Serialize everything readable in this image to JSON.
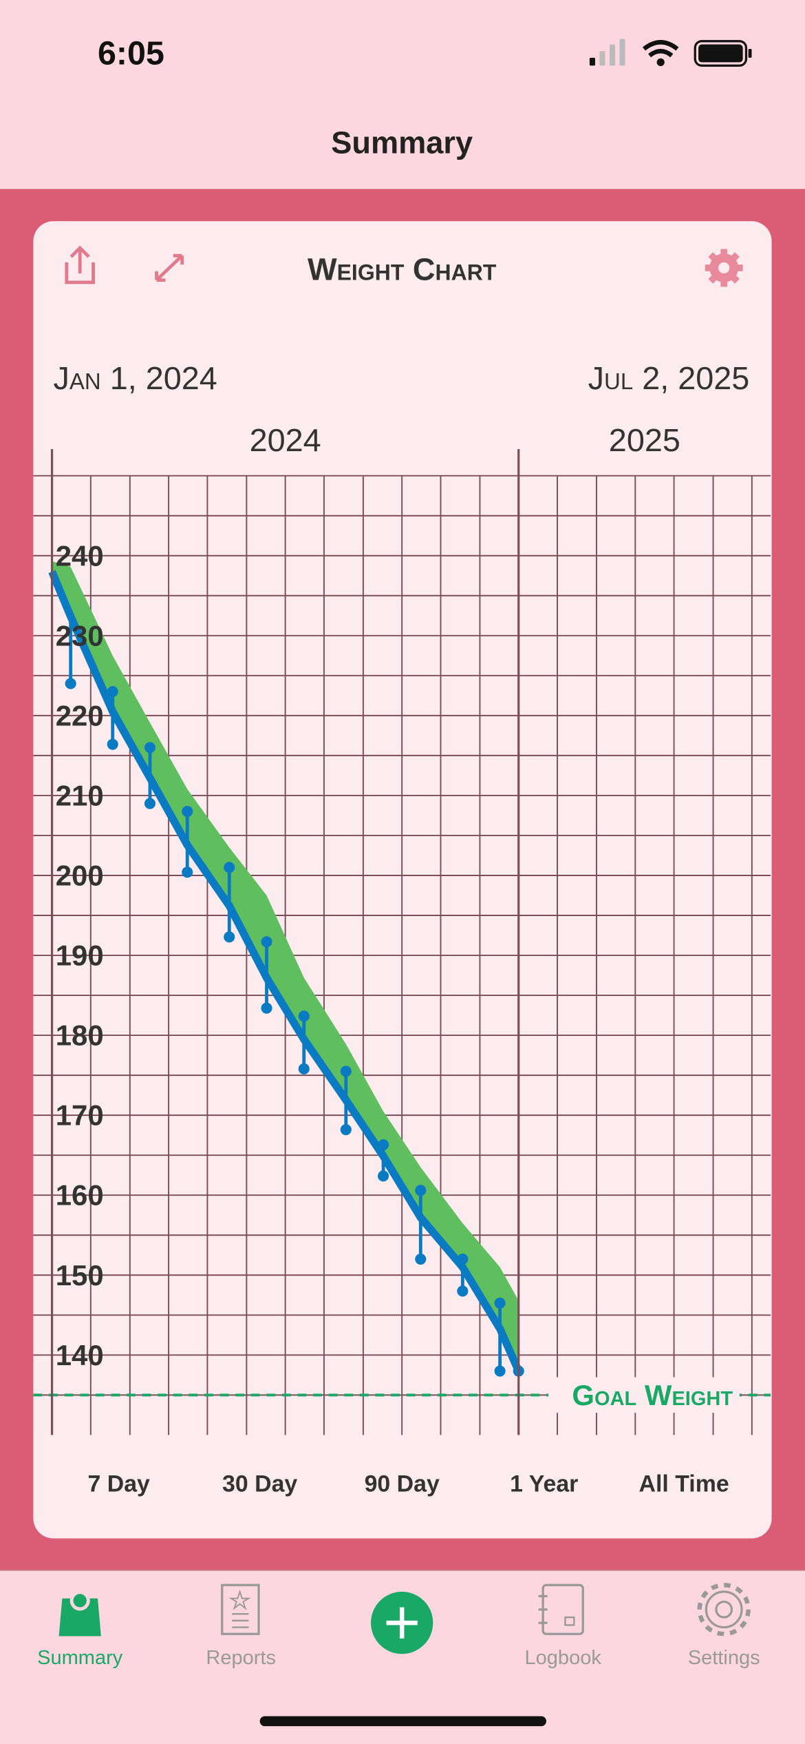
{
  "status_bar": {
    "time": "6:05"
  },
  "nav": {
    "title": "Summary"
  },
  "card": {
    "title": "Weight Chart",
    "start_date": "Jan 1, 2024",
    "end_date": "Jul 2, 2025"
  },
  "chart_data": {
    "type": "line",
    "xlim": [
      2023.96,
      2025.54
    ],
    "xticks": [
      2024,
      2025
    ],
    "xminor": [
      2024.083,
      2024.167,
      2024.25,
      2024.333,
      2024.417,
      2024.5,
      2024.583,
      2024.667,
      2024.75,
      2024.833,
      2024.917,
      2025.083,
      2025.167,
      2025.25,
      2025.333,
      2025.417,
      2025.5
    ],
    "ylim": [
      130,
      250
    ],
    "yticks": [
      140,
      150,
      160,
      170,
      180,
      190,
      200,
      210,
      220,
      230,
      240
    ],
    "yminor": [
      135,
      145,
      155,
      165,
      175,
      185,
      195,
      205,
      215,
      225,
      235,
      245,
      250
    ],
    "grid": true,
    "band": {
      "color": "#5fbf5f",
      "x": [
        2024,
        2024.04,
        2024.13,
        2024.21,
        2024.29,
        2024.38,
        2024.46,
        2024.54,
        2024.63,
        2024.71,
        2024.79,
        2024.88,
        2024.96,
        2025.0
      ],
      "values": [
        239.3,
        238.6,
        227.5,
        219.1,
        210.8,
        203.5,
        197.5,
        187.2,
        178.9,
        170.5,
        163.5,
        156.5,
        151,
        146.8
      ]
    },
    "trend": {
      "color": "#0a7bc2",
      "x": [
        2024,
        2024.04,
        2024.13,
        2024.21,
        2024.29,
        2024.38,
        2024.46,
        2024.54,
        2024.63,
        2024.71,
        2024.79,
        2024.88,
        2024.96,
        2025.0
      ],
      "values": [
        238,
        232.4,
        220.5,
        212.2,
        203.8,
        196.2,
        187.2,
        179.5,
        171.9,
        164.9,
        157.2,
        151,
        143.3,
        138
      ]
    },
    "readings": {
      "color": "#0a7bc2",
      "x": [
        2024.04,
        2024.13,
        2024.13,
        2024.21,
        2024.21,
        2024.29,
        2024.29,
        2024.38,
        2024.38,
        2024.46,
        2024.46,
        2024.54,
        2024.54,
        2024.63,
        2024.63,
        2024.71,
        2024.71,
        2024.79,
        2024.79,
        2024.88,
        2024.88,
        2024.96,
        2024.96,
        2025.0
      ],
      "values": [
        224,
        223,
        216.4,
        216,
        209,
        208,
        200.4,
        201,
        192.3,
        191.7,
        183.4,
        182.4,
        175.8,
        175.5,
        168.2,
        166.3,
        162.4,
        160.6,
        152,
        152,
        148,
        146.5,
        138,
        138
      ]
    },
    "goal": {
      "value": 135,
      "label": "Goal Weight",
      "color": "#1aa866"
    }
  },
  "ranges": [
    "7 Day",
    "30 Day",
    "90 Day",
    "1 Year",
    "All Time"
  ],
  "tabs": [
    "Summary",
    "Reports",
    "Logbook",
    "Settings"
  ]
}
